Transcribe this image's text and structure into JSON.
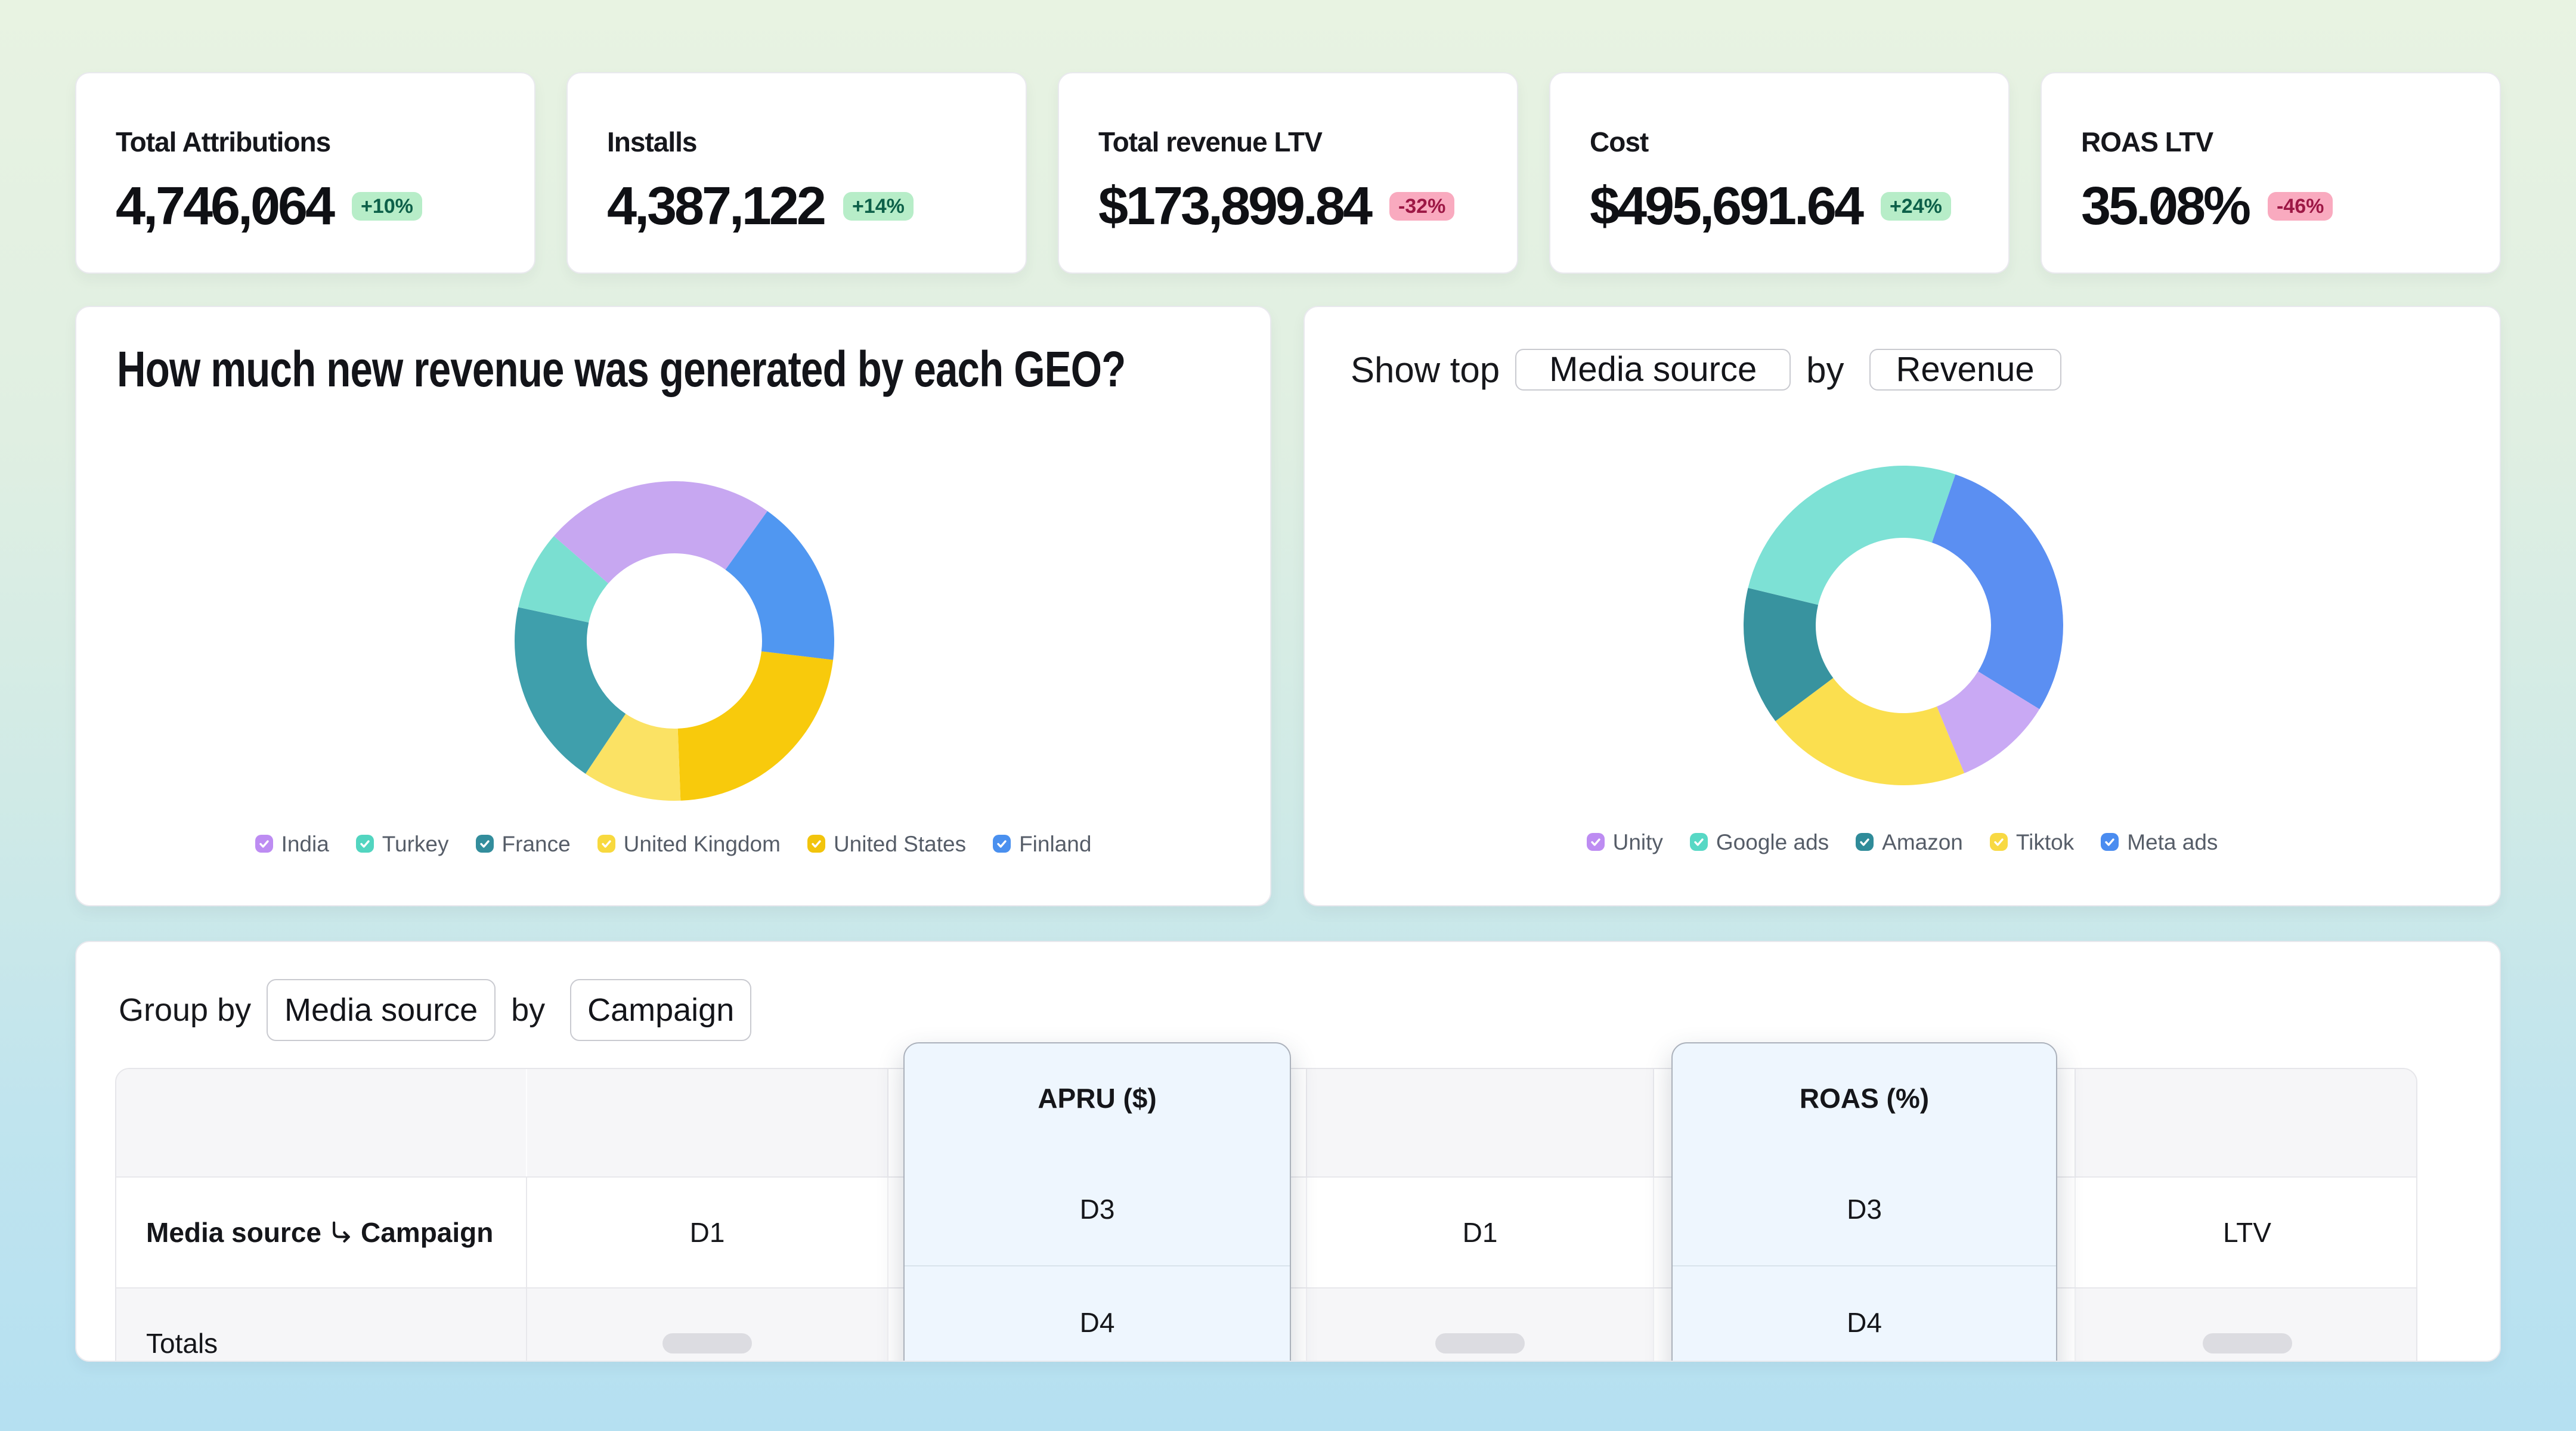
{
  "kpis": [
    {
      "title": "Total Attributions",
      "value": "4,746,064",
      "delta": "+10%",
      "delta_direction": "up"
    },
    {
      "title": "Installs",
      "value": "4,387,122",
      "delta": "+14%",
      "delta_direction": "up"
    },
    {
      "title": "Total revenue LTV",
      "value": "$173,899.84",
      "delta": "-32%",
      "delta_direction": "down"
    },
    {
      "title": "Cost",
      "value": "$495,691.64",
      "delta": "+24%",
      "delta_direction": "up"
    },
    {
      "title": "ROAS LTV",
      "value": "35.08%",
      "delta": "-46%",
      "delta_direction": "down"
    }
  ],
  "geo_card": {
    "title": "How much new revenue was generated by each GEO?"
  },
  "top_card": {
    "label_prefix": "Show top",
    "dropdown_dimension": "Media source",
    "label_connector": "by",
    "dropdown_metric": "Revenue"
  },
  "table_card": {
    "group_label": "Group by",
    "dropdown_dimension": "Media source",
    "label_connector": "by",
    "dropdown_breakdown": "Campaign",
    "dimension_header_primary": "Media source",
    "dimension_header_secondary": "Campaign",
    "metric_headers": [
      "D1",
      "D1",
      "LTV"
    ],
    "floating_panels": [
      {
        "title": "APRU ($)",
        "sub_rows": [
          "D3",
          "D4"
        ]
      },
      {
        "title": "ROAS (%)",
        "sub_rows": [
          "D3",
          "D4"
        ]
      }
    ],
    "totals_label": "Totals"
  },
  "chart_data": [
    {
      "type": "pie",
      "variant": "donut",
      "title": "How much new revenue was generated by each GEO?",
      "legend_position": "bottom",
      "start_angle_deg": -49,
      "series": [
        {
          "name": "India",
          "value": 23.5,
          "color": "#c7a7f1",
          "checkbox_color": "#bd8cf2"
        },
        {
          "name": "Finland",
          "value": 17.0,
          "color": "#5097f1",
          "checkbox_color": "#4a90ef"
        },
        {
          "name": "United States",
          "value": 22.5,
          "color": "#f8ca0c",
          "checkbox_color": "#f2c40c"
        },
        {
          "name": "United Kingdom",
          "value": 10.0,
          "color": "#fbe264",
          "checkbox_color": "#f8d93e"
        },
        {
          "name": "France",
          "value": 19.0,
          "color": "#3f9fac",
          "checkbox_color": "#338d9c"
        },
        {
          "name": "Turkey",
          "value": 8.0,
          "color": "#7adfd1",
          "checkbox_color": "#52d5c0"
        }
      ],
      "legend_order": [
        "India",
        "Turkey",
        "France",
        "United Kingdom",
        "United States",
        "Finland"
      ]
    },
    {
      "type": "pie",
      "variant": "donut",
      "title": "Show top Media source by Revenue",
      "legend_position": "bottom",
      "start_angle_deg": 19,
      "series": [
        {
          "name": "Meta ads",
          "value": 28.5,
          "color": "#5b8ff2",
          "checkbox_color": "#4a8cf0"
        },
        {
          "name": "Unity",
          "value": 10.0,
          "color": "#c9a9f4",
          "checkbox_color": "#bd8cf2"
        },
        {
          "name": "Tiktok",
          "value": 21.0,
          "color": "#fbdf4f",
          "checkbox_color": "#f8d943"
        },
        {
          "name": "Amazon",
          "value": 14.0,
          "color": "#38939f",
          "checkbox_color": "#2f8b99"
        },
        {
          "name": "Google ads",
          "value": 26.5,
          "color": "#7de1d5",
          "checkbox_color": "#57d8c5"
        }
      ],
      "legend_order": [
        "Unity",
        "Google ads",
        "Amazon",
        "Tiktok",
        "Meta ads"
      ]
    }
  ]
}
